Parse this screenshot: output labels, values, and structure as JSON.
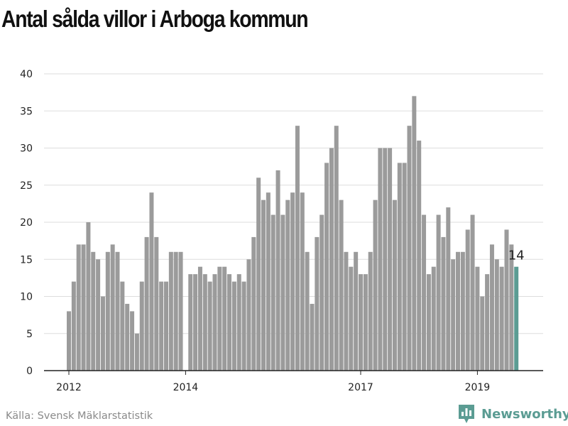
{
  "chart_data": {
    "type": "bar",
    "title": "Antal sålda villor i Arboga kommun",
    "xlabel": "",
    "ylabel": "",
    "ylim": [
      0,
      40
    ],
    "yticks": [
      0,
      5,
      10,
      15,
      20,
      25,
      30,
      35,
      40
    ],
    "xtick_labels": [
      {
        "label": "2012",
        "index": 0
      },
      {
        "label": "2014",
        "index": 24
      },
      {
        "label": "2017",
        "index": 60
      },
      {
        "label": "2019",
        "index": 84
      }
    ],
    "grid": true,
    "highlight_color": "#5b9c93",
    "bar_color": "#9b9b9b",
    "values": [
      8,
      12,
      17,
      17,
      20,
      16,
      15,
      10,
      16,
      17,
      16,
      12,
      9,
      8,
      5,
      12,
      18,
      24,
      18,
      12,
      12,
      16,
      16,
      16,
      0,
      13,
      13,
      14,
      13,
      12,
      13,
      14,
      14,
      13,
      12,
      13,
      12,
      15,
      18,
      26,
      23,
      24,
      21,
      27,
      21,
      23,
      24,
      33,
      24,
      16,
      9,
      18,
      21,
      28,
      30,
      33,
      23,
      16,
      14,
      16,
      13,
      13,
      16,
      23,
      30,
      30,
      30,
      23,
      28,
      28,
      33,
      37,
      31,
      21,
      13,
      14,
      21,
      18,
      22,
      15,
      16,
      16,
      19,
      21,
      14,
      10,
      13,
      17,
      15,
      14,
      19,
      17,
      14
    ],
    "last_value_label": "14"
  },
  "source": "Källa: Svensk Mäklarstatistik",
  "brand": "Newsworthy",
  "icons": [
    "newsworthy-logo-icon"
  ]
}
